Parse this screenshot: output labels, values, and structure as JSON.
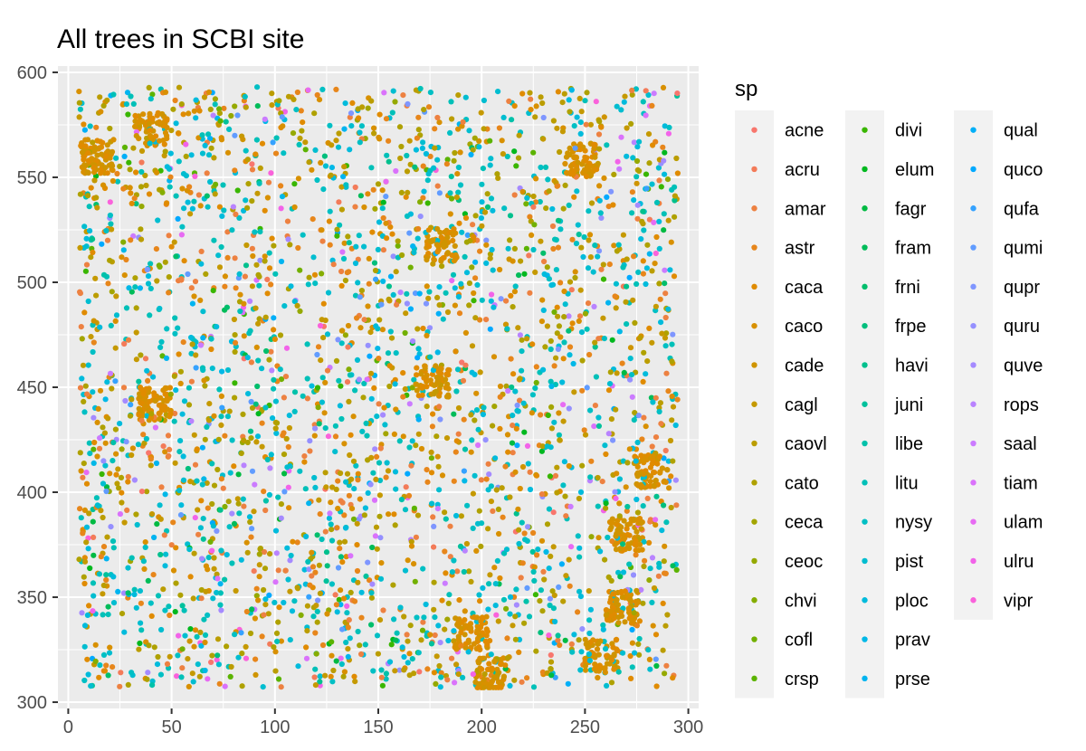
{
  "chart_data": {
    "type": "scatter",
    "title": "All trees in SCBI site",
    "xlabel": "",
    "ylabel": "",
    "xlim": [
      -5,
      305
    ],
    "ylim": [
      297,
      603
    ],
    "x_ticks": [
      0,
      50,
      100,
      150,
      200,
      250,
      300
    ],
    "y_ticks": [
      300,
      350,
      400,
      450,
      500,
      550,
      600
    ],
    "grid": true,
    "legend_title": "sp",
    "legend_position": "right",
    "plot_background": "#ebebeb",
    "series": [
      {
        "name": "acne",
        "color": "#F8766D"
      },
      {
        "name": "acru",
        "color": "#F37B59"
      },
      {
        "name": "amar",
        "color": "#ED8141"
      },
      {
        "name": "astr",
        "color": "#E7861B"
      },
      {
        "name": "caca",
        "color": "#E08B00"
      },
      {
        "name": "caco",
        "color": "#D89000"
      },
      {
        "name": "cade",
        "color": "#CF9400"
      },
      {
        "name": "cagl",
        "color": "#C59900"
      },
      {
        "name": "caovl",
        "color": "#BB9D00"
      },
      {
        "name": "cato",
        "color": "#AFA100"
      },
      {
        "name": "ceca",
        "color": "#A3A500"
      },
      {
        "name": "ceoc",
        "color": "#95A900"
      },
      {
        "name": "chvi",
        "color": "#85AD00"
      },
      {
        "name": "cofl",
        "color": "#72B000"
      },
      {
        "name": "crsp",
        "color": "#5BB300"
      },
      {
        "name": "divi",
        "color": "#39B600"
      },
      {
        "name": "elum",
        "color": "#00B81F"
      },
      {
        "name": "fagr",
        "color": "#00BA42"
      },
      {
        "name": "fram",
        "color": "#00BC59"
      },
      {
        "name": "frni",
        "color": "#00BE6C"
      },
      {
        "name": "frpe",
        "color": "#00BF7D"
      },
      {
        "name": "havi",
        "color": "#00C08D"
      },
      {
        "name": "juni",
        "color": "#00C19C"
      },
      {
        "name": "libe",
        "color": "#00C1AA"
      },
      {
        "name": "litu",
        "color": "#00C0B8"
      },
      {
        "name": "nysy",
        "color": "#00BFC4"
      },
      {
        "name": "pist",
        "color": "#00BDD0"
      },
      {
        "name": "ploc",
        "color": "#00BBDC"
      },
      {
        "name": "prav",
        "color": "#00B8E7"
      },
      {
        "name": "prse",
        "color": "#00B4F0"
      },
      {
        "name": "qual",
        "color": "#00AFF8"
      },
      {
        "name": "quco",
        "color": "#00A9FF"
      },
      {
        "name": "qufa",
        "color": "#35A2FF"
      },
      {
        "name": "qumi",
        "color": "#619CFF"
      },
      {
        "name": "qupr",
        "color": "#7F96FF"
      },
      {
        "name": "quru",
        "color": "#9590FF"
      },
      {
        "name": "quve",
        "color": "#A58AFF"
      },
      {
        "name": "rops",
        "color": "#B983FF"
      },
      {
        "name": "saal",
        "color": "#CB7BFF"
      },
      {
        "name": "tiam",
        "color": "#DA72FB"
      },
      {
        "name": "ulam",
        "color": "#E76BF3"
      },
      {
        "name": "ulru",
        "color": "#F263E9"
      },
      {
        "name": "vipr",
        "color": "#FA62DB"
      }
    ],
    "distribution": {
      "x_range": [
        5,
        295
      ],
      "y_range": [
        307,
        593
      ],
      "dominant_species": [
        "cagl",
        "caovl",
        "cato",
        "litu",
        "nysy",
        "pist",
        "ploc",
        "caca",
        "caco",
        "amar",
        "astr"
      ],
      "clusters": [
        {
          "x": 40,
          "y": 573,
          "species": "caca"
        },
        {
          "x": 248,
          "y": 558,
          "species": "caca"
        },
        {
          "x": 176,
          "y": 453,
          "species": "caca"
        },
        {
          "x": 180,
          "y": 518,
          "species": "caca"
        },
        {
          "x": 282,
          "y": 410,
          "species": "caca"
        },
        {
          "x": 270,
          "y": 380,
          "species": "caca"
        },
        {
          "x": 268,
          "y": 345,
          "species": "caca"
        },
        {
          "x": 258,
          "y": 322,
          "species": "caca"
        },
        {
          "x": 195,
          "y": 333,
          "species": "caca"
        },
        {
          "x": 205,
          "y": 313,
          "species": "caca"
        },
        {
          "x": 42,
          "y": 442,
          "species": "caca"
        },
        {
          "x": 14,
          "y": 560,
          "species": "caca"
        }
      ]
    }
  }
}
